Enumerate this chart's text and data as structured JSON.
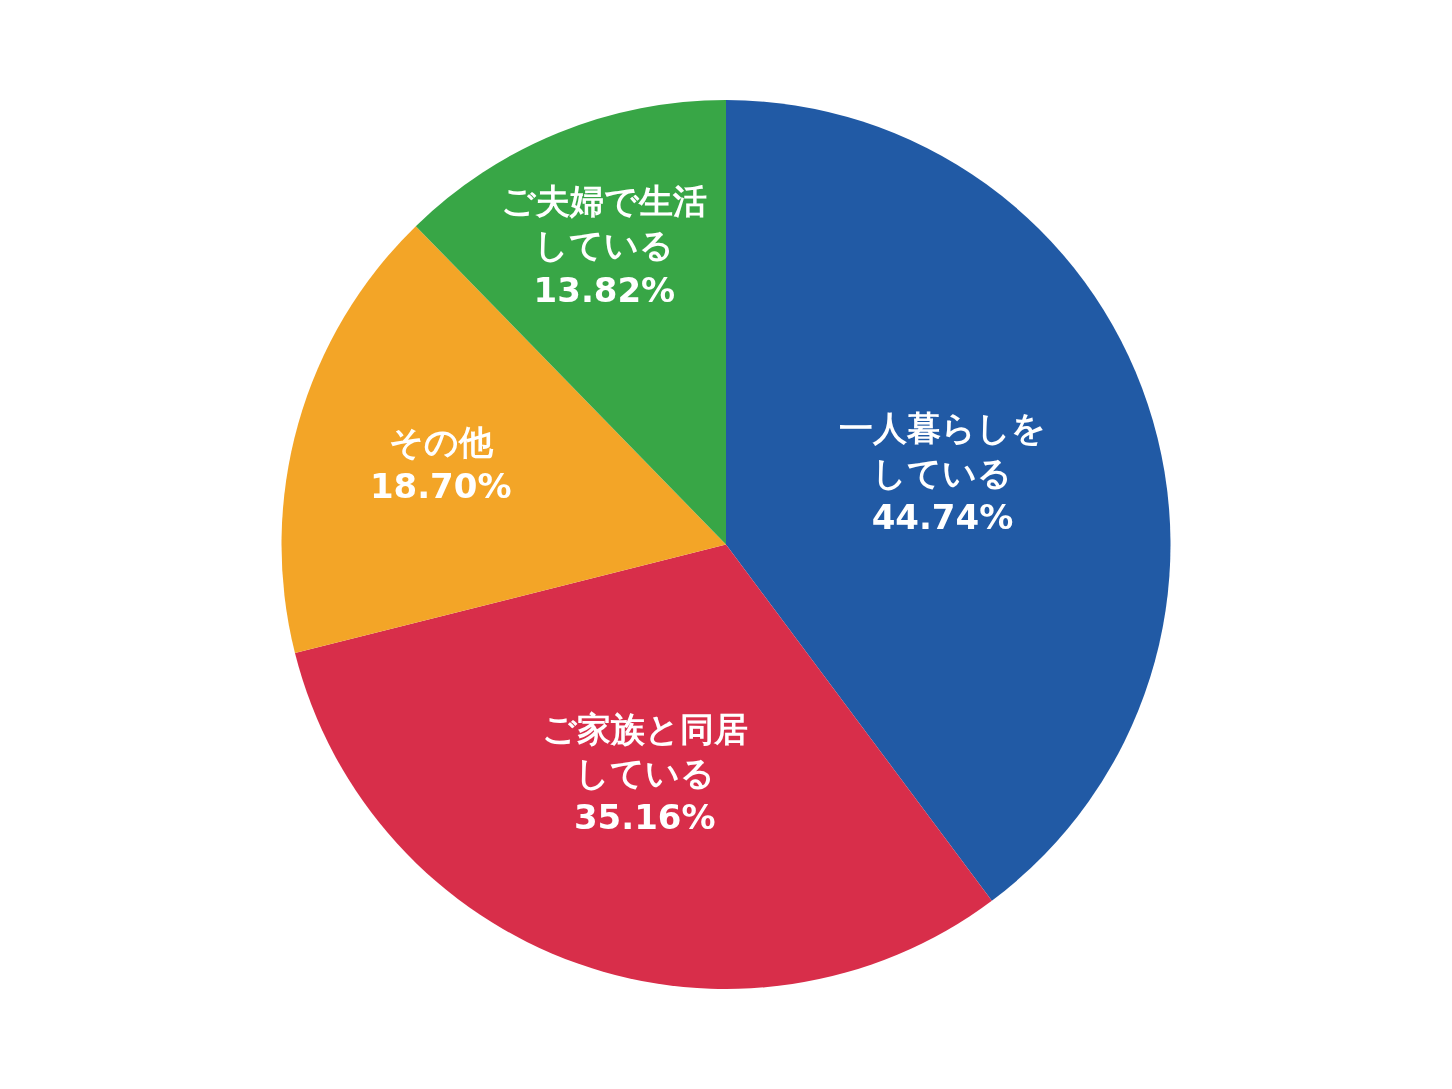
{
  "chart_data": {
    "type": "pie",
    "categories": [
      "一人暮らしをしている",
      "ご家族と同居している",
      "その他",
      "ご夫婦で生活している"
    ],
    "values": [
      44.74,
      35.16,
      18.7,
      13.82
    ],
    "value_labels": [
      "44.74%",
      "35.16%",
      "18.70%",
      "13.82%"
    ],
    "colors": [
      "#215aa5",
      "#d82e4a",
      "#f3a527",
      "#38a646"
    ],
    "legend": false
  }
}
